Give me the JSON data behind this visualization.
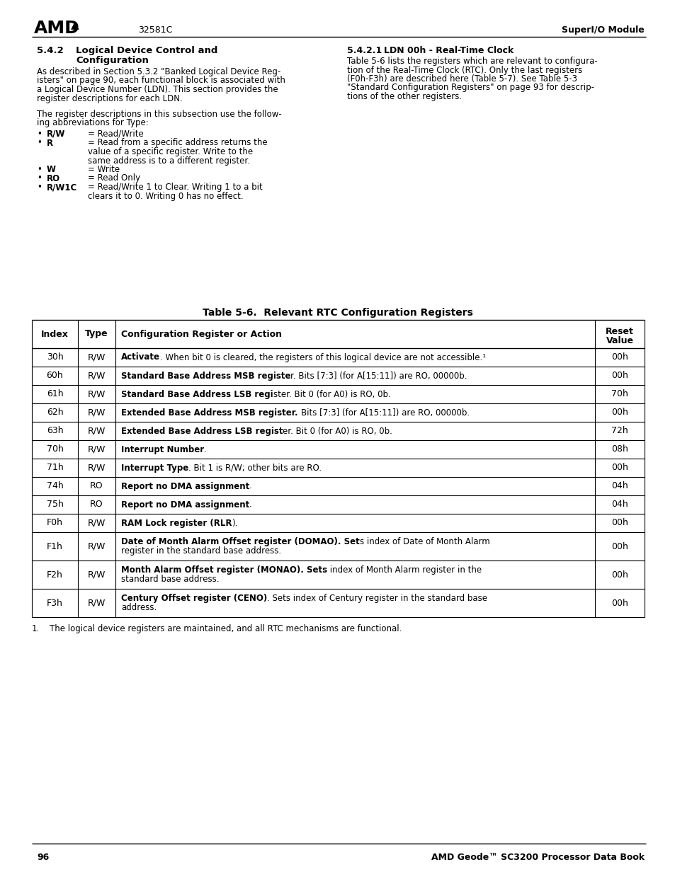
{
  "header_center": "32581C",
  "header_right": "SuperI/O Module",
  "table_title": "Table 5-6.  Relevant RTC Configuration Registers",
  "table_rows": [
    [
      "30h",
      "R/W",
      "Activate. When bit 0 is cleared, the registers of this logical device are not accessible.¹",
      "00h",
      1
    ],
    [
      "60h",
      "R/W",
      "Standard Base Address MSB register. Bits [7:3] (for A[15:11]) are RO, 00000b.",
      "00h",
      1
    ],
    [
      "61h",
      "R/W",
      "Standard Base Address LSB register. Bit 0 (for A0) is RO, 0b.",
      "70h",
      1
    ],
    [
      "62h",
      "R/W",
      "Extended Base Address MSB register. Bits [7:3] (for A[15:11]) are RO, 00000b.",
      "00h",
      1
    ],
    [
      "63h",
      "R/W",
      "Extended Base Address LSB register. Bit 0 (for A0) is RO, 0b.",
      "72h",
      1
    ],
    [
      "70h",
      "R/W",
      "Interrupt Number.",
      "08h",
      1
    ],
    [
      "71h",
      "R/W",
      "Interrupt Type. Bit 1 is R/W; other bits are RO.",
      "00h",
      1
    ],
    [
      "74h",
      "RO",
      "Report no DMA assignment.",
      "04h",
      1
    ],
    [
      "75h",
      "RO",
      "Report no DMA assignment.",
      "04h",
      1
    ],
    [
      "F0h",
      "R/W",
      "RAM Lock register (RLR).",
      "00h",
      1
    ],
    [
      "F1h",
      "R/W",
      "Date of Month Alarm Offset register (DOMAO). Sets index of Date of Month Alarm\nregister in the standard base address.",
      "00h",
      2
    ],
    [
      "F2h",
      "R/W",
      "Month Alarm Offset register (MONAO). Sets index of Month Alarm register in the\nstandard base address.",
      "00h",
      2
    ],
    [
      "F3h",
      "R/W",
      "Century Offset register (CENO). Sets index of Century register in the standard base\naddress.",
      "00h",
      2
    ]
  ],
  "bold_end_indices": [
    8,
    33,
    30,
    36,
    32,
    16,
    14,
    24,
    24,
    22,
    48,
    41,
    30
  ],
  "bg_color": "#ffffff",
  "text_color": "#000000",
  "line_color": "#000000"
}
